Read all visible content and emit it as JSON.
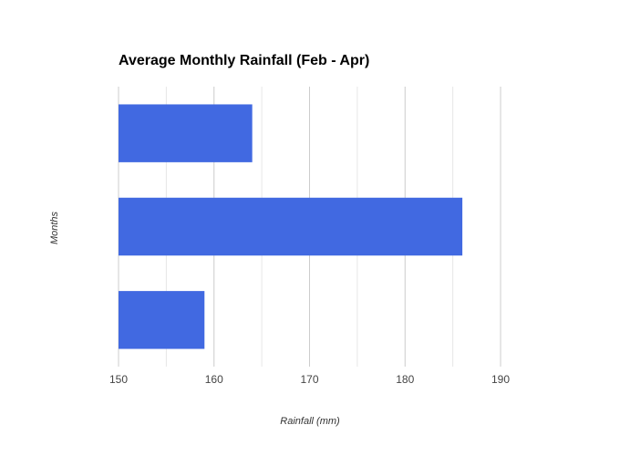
{
  "chart_data": {
    "type": "hbar",
    "title": "Average Monthly Rainfall (Feb - Apr)",
    "x_label": "Rainfall (mm)",
    "y_label": "Months",
    "categories": [
      null,
      null,
      null
    ],
    "values": [
      164,
      186,
      159
    ],
    "color": "#4169e1",
    "xlim": [
      150,
      190
    ],
    "xticks": [
      150,
      160,
      170,
      180,
      190
    ],
    "minor_xticks": [
      155,
      165,
      175,
      185
    ],
    "grid": true
  }
}
